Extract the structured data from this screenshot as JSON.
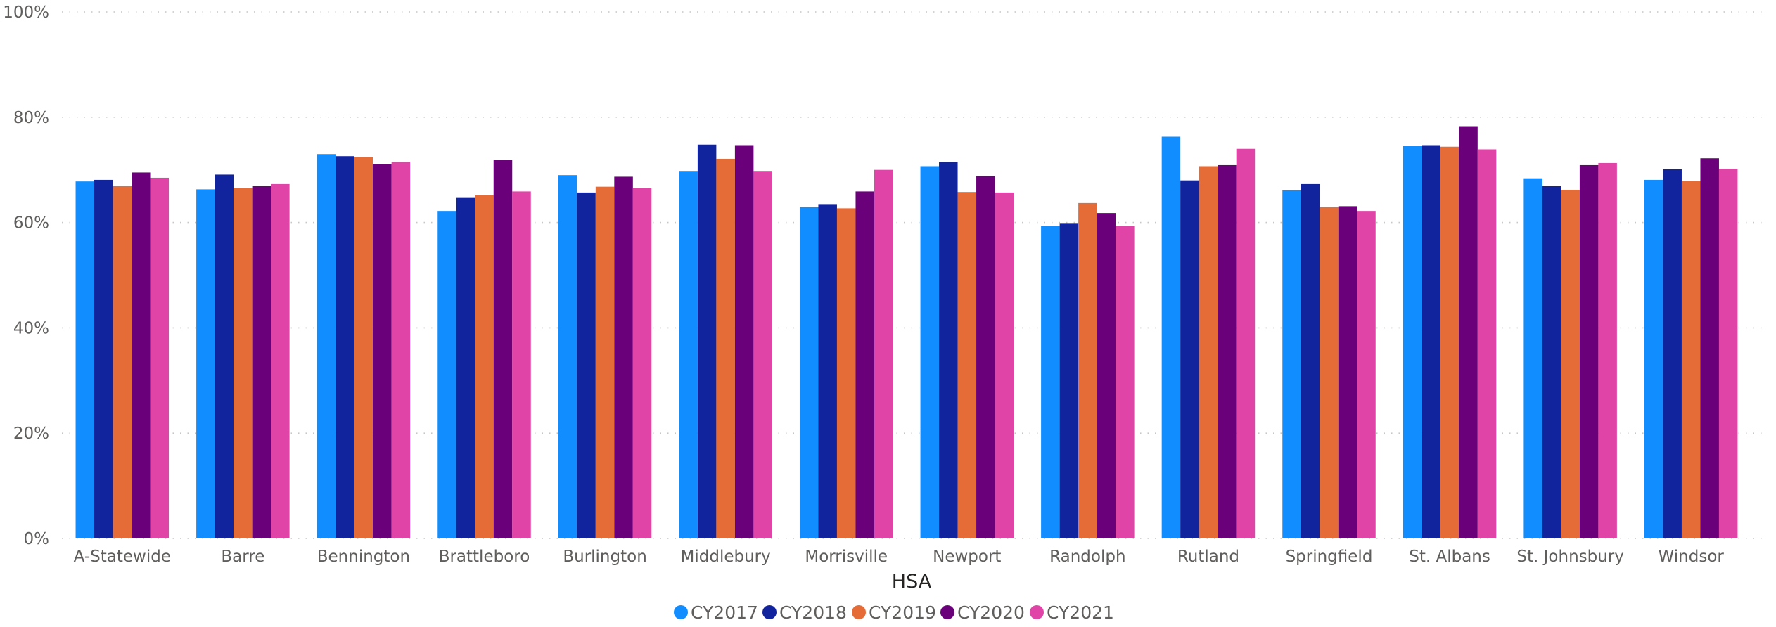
{
  "chart_data": {
    "type": "bar",
    "title": "",
    "xlabel": "HSA",
    "ylabel": "",
    "ylim": [
      0,
      100
    ],
    "yticks": [
      "0%",
      "20%",
      "40%",
      "60%",
      "80%",
      "100%"
    ],
    "ytick_values": [
      0,
      20,
      40,
      60,
      80,
      100
    ],
    "grid": true,
    "legend_position": "bottom",
    "categories": [
      "A-Statewide",
      "Barre",
      "Bennington",
      "Brattleboro",
      "Burlington",
      "Middlebury",
      "Morrisville",
      "Newport",
      "Randolph",
      "Rutland",
      "Springfield",
      "St. Albans",
      "St. Johnsbury",
      "Windsor"
    ],
    "series": [
      {
        "name": "CY2017",
        "color": "#118dff",
        "values": [
          67.8,
          66.3,
          73.0,
          62.2,
          69.0,
          69.8,
          62.9,
          70.7,
          59.4,
          76.3,
          66.1,
          74.6,
          68.4,
          68.1
        ]
      },
      {
        "name": "CY2018",
        "color": "#12239e",
        "values": [
          68.1,
          69.1,
          72.6,
          64.8,
          65.7,
          74.8,
          63.5,
          71.5,
          59.9,
          68.0,
          67.3,
          74.7,
          66.9,
          70.1
        ]
      },
      {
        "name": "CY2019",
        "color": "#e66c37",
        "values": [
          66.9,
          66.5,
          72.5,
          65.2,
          66.8,
          72.1,
          62.7,
          65.8,
          63.7,
          70.7,
          62.9,
          74.4,
          66.2,
          67.9
        ]
      },
      {
        "name": "CY2020",
        "color": "#6b007b",
        "values": [
          69.5,
          66.9,
          71.1,
          71.9,
          68.7,
          74.7,
          65.9,
          68.8,
          61.8,
          70.9,
          63.1,
          78.3,
          70.9,
          72.2
        ]
      },
      {
        "name": "CY2021",
        "color": "#e044a7",
        "values": [
          68.5,
          67.3,
          71.5,
          65.9,
          66.6,
          69.8,
          70.0,
          65.7,
          59.4,
          74.0,
          62.2,
          73.9,
          71.3,
          70.2
        ]
      }
    ]
  }
}
